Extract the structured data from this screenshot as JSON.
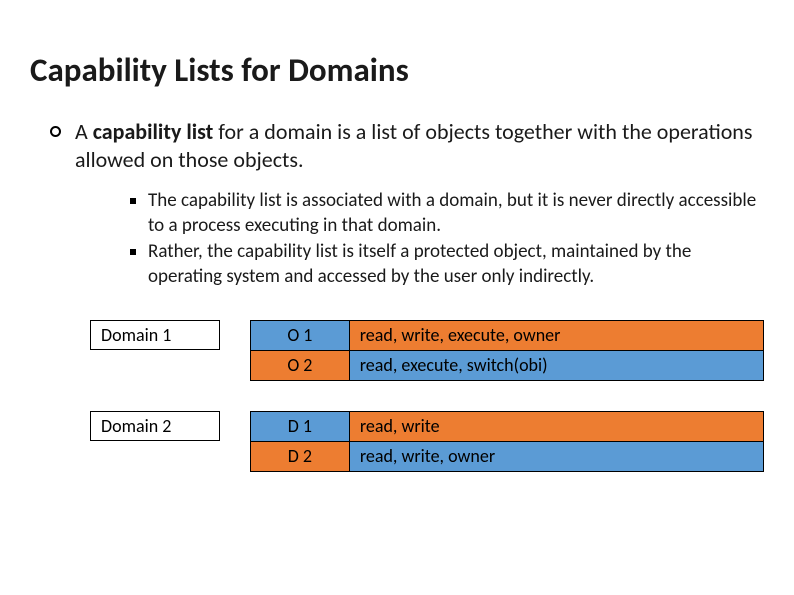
{
  "title": "Capability Lists for Domains",
  "main_list": {
    "text_pre": "A ",
    "bold": "capability list",
    "text_post": " for a domain is a list of objects together with the operations allowed on those objects."
  },
  "sub_items": [
    "The capability list is associated with a domain, but it is never directly accessible to a process executing in that domain.",
    "Rather, the capability list is itself a protected object, maintained by the operating system and accessed by the user only indirectly."
  ],
  "colors": {
    "blue": "#5b9bd5",
    "orange": "#ed7d31",
    "border": "#000000"
  },
  "domains": [
    {
      "label": "Domain 1",
      "rows": [
        {
          "obj": "O 1",
          "obj_bg": "blue",
          "ops": "read, write, execute, owner",
          "ops_bg": "orange"
        },
        {
          "obj": "O 2",
          "obj_bg": "orange",
          "ops": "read, execute, switch(obi)",
          "ops_bg": "blue"
        }
      ]
    },
    {
      "label": "Domain 2",
      "rows": [
        {
          "obj": "D 1",
          "obj_bg": "blue",
          "ops": "read, write",
          "ops_bg": "orange"
        },
        {
          "obj": "D 2",
          "obj_bg": "orange",
          "ops": "read, write, owner",
          "ops_bg": "blue"
        }
      ]
    }
  ]
}
